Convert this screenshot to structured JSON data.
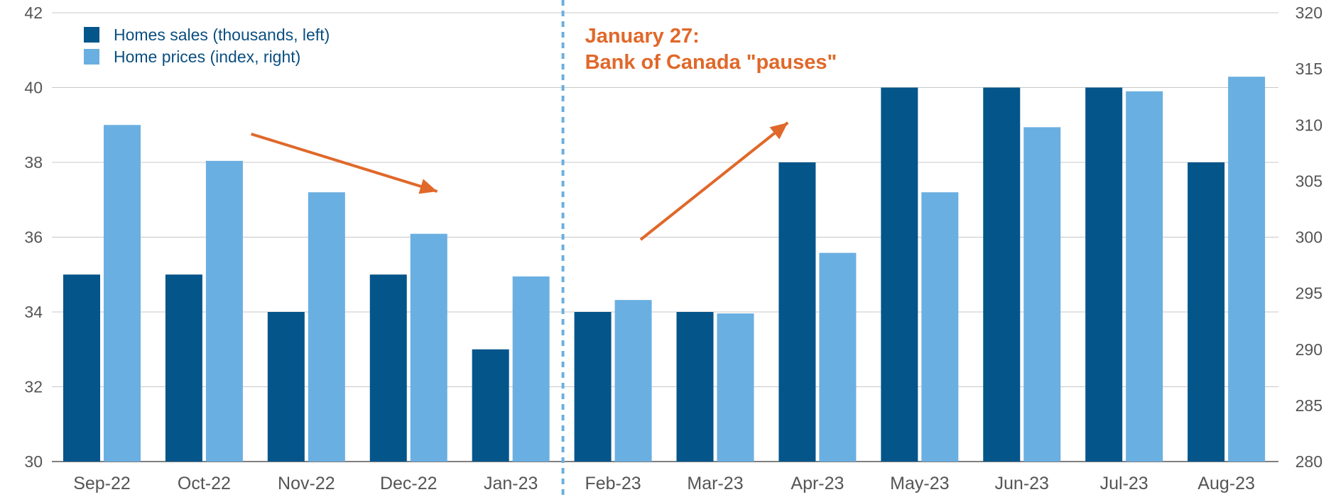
{
  "chart_data": {
    "type": "bar",
    "categories": [
      "Sep-22",
      "Oct-22",
      "Nov-22",
      "Dec-22",
      "Jan-23",
      "Feb-23",
      "Mar-23",
      "Apr-23",
      "May-23",
      "Jun-23",
      "Jul-23",
      "Aug-23"
    ],
    "series": [
      {
        "name": "Homes sales (thousands, left)",
        "axis": "left",
        "color": "#04558a",
        "values": [
          35,
          35,
          34,
          35,
          33,
          34,
          34,
          38,
          40,
          40,
          40,
          38
        ]
      },
      {
        "name": "Home prices (index, right)",
        "axis": "right",
        "color": "#6aafe1",
        "values": [
          310,
          306.8,
          304,
          300.3,
          296.5,
          294.4,
          293.2,
          298.6,
          304,
          309.8,
          313,
          314.3
        ]
      }
    ],
    "y_left": {
      "range": [
        30,
        42
      ],
      "ticks": [
        30,
        32,
        34,
        36,
        38,
        40,
        42
      ]
    },
    "y_right": {
      "range": [
        280,
        320
      ],
      "ticks": [
        280,
        285,
        290,
        295,
        300,
        305,
        310,
        315,
        320
      ]
    },
    "grid": true,
    "legend_position": "top-left",
    "annotation": {
      "lines": [
        "January 27:",
        "Bank of Canada \"pauses\""
      ],
      "color": "#e0682a",
      "after_category": "Jan-23"
    },
    "trend_arrows": [
      {
        "direction": "down",
        "span": [
          "Oct-22",
          "Dec-22"
        ],
        "color": "#e0682a"
      },
      {
        "direction": "up",
        "span": [
          "Feb-23",
          "Apr-23"
        ],
        "color": "#e0682a"
      }
    ],
    "divider": {
      "style": "dashed",
      "color": "#6aafe1"
    }
  }
}
